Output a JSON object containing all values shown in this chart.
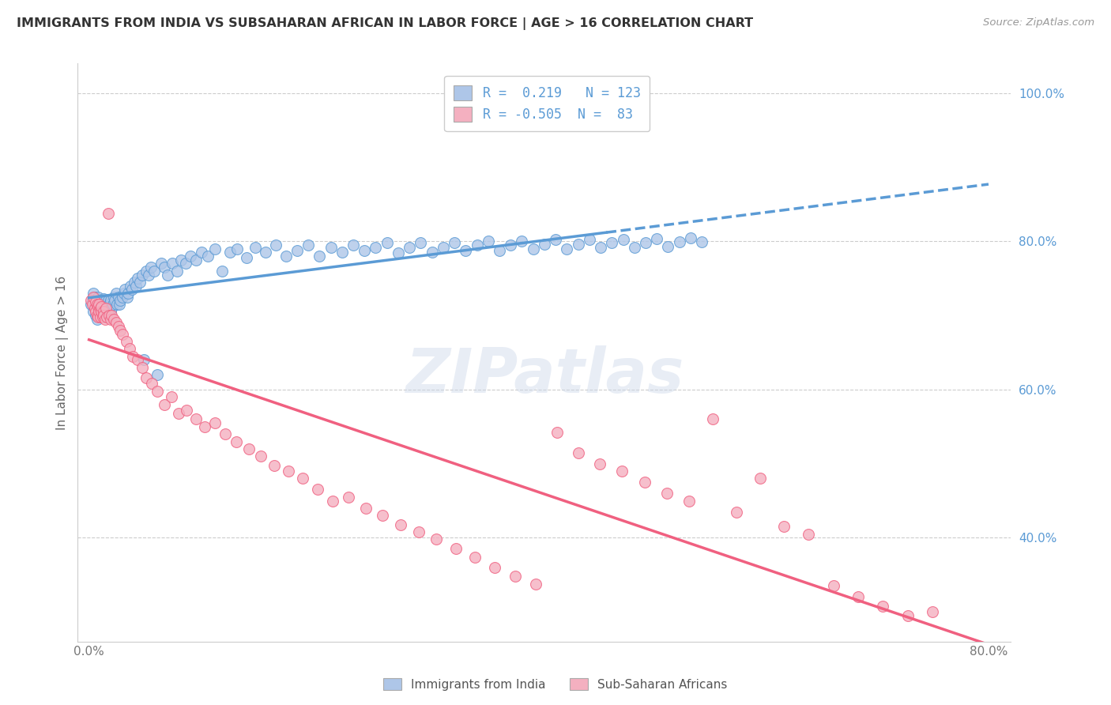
{
  "title": "IMMIGRANTS FROM INDIA VS SUBSAHARAN AFRICAN IN LABOR FORCE | AGE > 16 CORRELATION CHART",
  "source": "Source: ZipAtlas.com",
  "ylabel": "In Labor Force | Age > 16",
  "xlabel_ticks": [
    "0.0%",
    "",
    "",
    "",
    "80.0%"
  ],
  "xlabel_vals": [
    0.0,
    0.2,
    0.4,
    0.6,
    0.8
  ],
  "ylabel_ticks": [
    "40.0%",
    "60.0%",
    "80.0%",
    "100.0%"
  ],
  "ylabel_vals": [
    0.4,
    0.6,
    0.8,
    1.0
  ],
  "india_r": 0.219,
  "india_n": 123,
  "africa_r": -0.505,
  "africa_n": 83,
  "india_color": "#aec6e8",
  "africa_color": "#f4b0c0",
  "india_line_color": "#5b9bd5",
  "africa_line_color": "#f06080",
  "legend_india": "Immigrants from India",
  "legend_africa": "Sub-Saharan Africans",
  "background_color": "#ffffff",
  "grid_color": "#cccccc",
  "watermark": "ZIPatlas",
  "india_x": [
    0.002,
    0.003,
    0.004,
    0.004,
    0.005,
    0.005,
    0.006,
    0.006,
    0.007,
    0.007,
    0.008,
    0.008,
    0.008,
    0.009,
    0.009,
    0.009,
    0.01,
    0.01,
    0.01,
    0.011,
    0.011,
    0.011,
    0.012,
    0.012,
    0.013,
    0.013,
    0.013,
    0.014,
    0.014,
    0.015,
    0.015,
    0.016,
    0.016,
    0.017,
    0.017,
    0.018,
    0.018,
    0.019,
    0.019,
    0.02,
    0.021,
    0.022,
    0.023,
    0.024,
    0.025,
    0.026,
    0.027,
    0.028,
    0.03,
    0.031,
    0.032,
    0.034,
    0.035,
    0.037,
    0.038,
    0.04,
    0.042,
    0.043,
    0.045,
    0.047,
    0.049,
    0.051,
    0.053,
    0.055,
    0.058,
    0.061,
    0.064,
    0.067,
    0.07,
    0.074,
    0.078,
    0.082,
    0.086,
    0.09,
    0.095,
    0.1,
    0.106,
    0.112,
    0.118,
    0.125,
    0.132,
    0.14,
    0.148,
    0.157,
    0.166,
    0.175,
    0.185,
    0.195,
    0.205,
    0.215,
    0.225,
    0.235,
    0.245,
    0.255,
    0.265,
    0.275,
    0.285,
    0.295,
    0.305,
    0.315,
    0.325,
    0.335,
    0.345,
    0.355,
    0.365,
    0.375,
    0.385,
    0.395,
    0.405,
    0.415,
    0.425,
    0.435,
    0.445,
    0.455,
    0.465,
    0.475,
    0.485,
    0.495,
    0.505,
    0.515,
    0.525,
    0.535,
    0.545
  ],
  "india_y": [
    0.715,
    0.72,
    0.705,
    0.73,
    0.71,
    0.725,
    0.7,
    0.718,
    0.695,
    0.722,
    0.708,
    0.715,
    0.725,
    0.7,
    0.712,
    0.72,
    0.698,
    0.71,
    0.718,
    0.7,
    0.715,
    0.72,
    0.705,
    0.718,
    0.7,
    0.712,
    0.722,
    0.698,
    0.716,
    0.705,
    0.72,
    0.698,
    0.715,
    0.705,
    0.72,
    0.698,
    0.715,
    0.705,
    0.72,
    0.71,
    0.715,
    0.725,
    0.72,
    0.73,
    0.715,
    0.725,
    0.715,
    0.72,
    0.725,
    0.73,
    0.735,
    0.725,
    0.73,
    0.74,
    0.735,
    0.745,
    0.74,
    0.75,
    0.745,
    0.755,
    0.64,
    0.76,
    0.755,
    0.765,
    0.76,
    0.62,
    0.77,
    0.765,
    0.755,
    0.77,
    0.76,
    0.775,
    0.77,
    0.78,
    0.775,
    0.785,
    0.78,
    0.79,
    0.76,
    0.785,
    0.79,
    0.778,
    0.792,
    0.785,
    0.795,
    0.78,
    0.788,
    0.795,
    0.78,
    0.792,
    0.785,
    0.795,
    0.788,
    0.792,
    0.798,
    0.784,
    0.792,
    0.798,
    0.785,
    0.792,
    0.798,
    0.788,
    0.795,
    0.8,
    0.788,
    0.795,
    0.8,
    0.79,
    0.796,
    0.802,
    0.79,
    0.796,
    0.802,
    0.792,
    0.798,
    0.803,
    0.792,
    0.798,
    0.804,
    0.793,
    0.799,
    0.805,
    0.799
  ],
  "africa_x": [
    0.002,
    0.003,
    0.004,
    0.005,
    0.006,
    0.006,
    0.007,
    0.007,
    0.008,
    0.008,
    0.009,
    0.009,
    0.01,
    0.01,
    0.011,
    0.011,
    0.012,
    0.013,
    0.013,
    0.014,
    0.015,
    0.016,
    0.017,
    0.018,
    0.019,
    0.02,
    0.022,
    0.024,
    0.026,
    0.028,
    0.03,
    0.033,
    0.036,
    0.039,
    0.043,
    0.047,
    0.051,
    0.056,
    0.061,
    0.067,
    0.073,
    0.08,
    0.087,
    0.095,
    0.103,
    0.112,
    0.121,
    0.131,
    0.142,
    0.153,
    0.165,
    0.177,
    0.19,
    0.203,
    0.217,
    0.231,
    0.246,
    0.261,
    0.277,
    0.293,
    0.309,
    0.326,
    0.343,
    0.361,
    0.379,
    0.397,
    0.416,
    0.435,
    0.454,
    0.474,
    0.494,
    0.514,
    0.534,
    0.555,
    0.576,
    0.597,
    0.618,
    0.64,
    0.662,
    0.684,
    0.706,
    0.728,
    0.75
  ],
  "africa_y": [
    0.72,
    0.715,
    0.725,
    0.71,
    0.718,
    0.705,
    0.715,
    0.7,
    0.712,
    0.698,
    0.715,
    0.705,
    0.71,
    0.698,
    0.705,
    0.712,
    0.698,
    0.705,
    0.7,
    0.695,
    0.71,
    0.698,
    0.838,
    0.7,
    0.695,
    0.7,
    0.695,
    0.69,
    0.685,
    0.68,
    0.675,
    0.665,
    0.655,
    0.645,
    0.64,
    0.63,
    0.616,
    0.608,
    0.598,
    0.58,
    0.59,
    0.568,
    0.572,
    0.56,
    0.55,
    0.555,
    0.54,
    0.53,
    0.52,
    0.51,
    0.498,
    0.49,
    0.48,
    0.465,
    0.45,
    0.455,
    0.44,
    0.43,
    0.418,
    0.408,
    0.398,
    0.386,
    0.374,
    0.36,
    0.348,
    0.338,
    0.542,
    0.515,
    0.5,
    0.49,
    0.475,
    0.46,
    0.45,
    0.56,
    0.435,
    0.48,
    0.415,
    0.405,
    0.335,
    0.32,
    0.308,
    0.295,
    0.3
  ],
  "xlim": [
    -0.01,
    0.82
  ],
  "ylim": [
    0.26,
    1.04
  ],
  "india_trend_solid_end": 0.46,
  "tick_color": "#777777"
}
